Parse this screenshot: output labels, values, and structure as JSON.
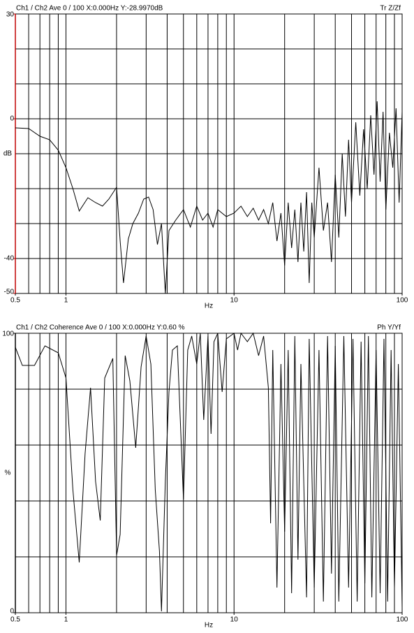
{
  "chart_data": [
    {
      "type": "line",
      "header_left": "Ch1 / Ch2  Ave 0 / 100  X:0.000Hz  Y:-28.9970dB",
      "header_right": "Tr Z/Zf",
      "xlabel": "Hz",
      "ylabel": "dB",
      "xscale": "log",
      "xlim": [
        0.5,
        100
      ],
      "xticks": [
        0.5,
        1,
        10,
        100
      ],
      "xgrid": [
        0.6,
        0.7,
        0.8,
        0.9,
        1,
        2,
        3,
        4,
        5,
        6,
        7,
        8,
        9,
        10,
        20,
        30,
        40,
        50,
        60,
        70,
        80,
        90
      ],
      "ylim": [
        -50,
        30
      ],
      "yticks": [
        30,
        0,
        -40,
        -50
      ],
      "ygrid": [
        -40,
        -30,
        -20,
        -10,
        0,
        10,
        20
      ],
      "axis_color": "#c00000",
      "color": "#000000",
      "x": [
        0.5,
        0.6,
        0.7,
        0.8,
        0.9,
        1.0,
        1.1,
        1.2,
        1.35,
        1.5,
        1.65,
        1.8,
        2.0,
        2.1,
        2.2,
        2.35,
        2.5,
        2.7,
        2.9,
        3.1,
        3.3,
        3.5,
        3.7,
        3.9,
        4.1,
        4.5,
        5,
        5.5,
        6,
        6.5,
        7,
        7.5,
        8,
        9,
        10,
        11,
        12,
        13,
        14,
        15,
        16,
        17,
        18,
        19,
        20,
        21,
        22,
        23,
        24,
        25,
        26,
        27,
        28,
        29,
        30,
        32,
        34,
        36,
        38,
        40,
        42,
        44,
        46,
        48,
        50,
        53,
        56,
        59,
        62,
        65,
        68,
        71,
        74,
        77,
        80,
        84,
        88,
        92,
        96,
        100
      ],
      "values": [
        -2.6,
        -2.8,
        -5,
        -6,
        -9,
        -14,
        -20,
        -26.4,
        -22.6,
        -24,
        -25,
        -23,
        -19.6,
        -35,
        -47,
        -34.4,
        -30,
        -27,
        -23,
        -22.4,
        -26,
        -36,
        -30,
        -50,
        -32,
        -29,
        -26,
        -31,
        -25,
        -29,
        -27,
        -31,
        -26,
        -28,
        -27,
        -25,
        -28,
        -25.6,
        -29,
        -26,
        -30,
        -24,
        -35,
        -27,
        -42,
        -24,
        -37,
        -26,
        -41,
        -24,
        -38,
        -21,
        -47,
        -24,
        -34,
        -14,
        -32,
        -24,
        -41,
        -16,
        -34,
        -10,
        -28,
        -6,
        -24,
        -1,
        -22,
        -3,
        -20,
        1,
        -16,
        5,
        -18,
        2,
        -26,
        -4,
        -14,
        3,
        -24,
        2
      ]
    },
    {
      "type": "line",
      "header_left": "Ch1 / Ch2  Coherence Ave 0 / 100  X:0.000Hz  Y:0.60 %",
      "header_right": "Ph Y/Yf",
      "xlabel": "Hz",
      "ylabel": "%",
      "xscale": "log",
      "xlim": [
        0.5,
        100
      ],
      "xticks": [
        0.5,
        1,
        10,
        100
      ],
      "xgrid": [
        0.6,
        0.7,
        0.8,
        0.9,
        1,
        2,
        3,
        4,
        5,
        6,
        7,
        8,
        9,
        10,
        20,
        30,
        40,
        50,
        60,
        70,
        80,
        90
      ],
      "ylim": [
        0,
        100
      ],
      "yticks": [
        100,
        0
      ],
      "ygrid": [
        20,
        40,
        60,
        80
      ],
      "axis_color": "#000000",
      "color": "#000000",
      "x": [
        0.5,
        0.55,
        0.65,
        0.75,
        0.9,
        1.0,
        1.1,
        1.2,
        1.3,
        1.4,
        1.5,
        1.6,
        1.7,
        1.9,
        2.0,
        2.1,
        2.25,
        2.4,
        2.6,
        2.8,
        3.0,
        3.2,
        3.4,
        3.6,
        3.7,
        3.9,
        4.1,
        4.3,
        4.6,
        5.0,
        5.3,
        5.6,
        6,
        6.3,
        6.6,
        7,
        7.3,
        7.6,
        8,
        8.5,
        9,
        10,
        10.5,
        11,
        12,
        13,
        14,
        15,
        16,
        16.5,
        17,
        18,
        19,
        20,
        21,
        22,
        23,
        24,
        25,
        27,
        28,
        30,
        32,
        34,
        36,
        38,
        40,
        42,
        45,
        48,
        51,
        54,
        57,
        60,
        63,
        66,
        70,
        74,
        78,
        82,
        86,
        90,
        95,
        100
      ],
      "values": [
        95,
        88.5,
        88.5,
        95.5,
        93,
        84,
        44,
        18,
        57,
        80.5,
        47,
        33,
        84,
        91,
        20.5,
        28,
        92,
        83,
        59,
        88,
        99,
        89,
        44,
        22,
        0.5,
        47,
        79,
        94,
        95.5,
        40.5,
        94,
        99,
        89,
        100,
        69,
        99,
        64,
        97,
        100,
        79,
        98,
        100,
        94,
        100,
        97,
        100,
        92,
        99,
        80.5,
        32,
        94,
        9,
        89,
        29,
        94,
        7,
        99,
        19,
        89,
        5.5,
        98,
        9,
        94,
        4,
        99,
        14,
        95.5,
        4,
        99,
        9,
        98,
        4,
        97,
        10.5,
        99,
        5.5,
        94,
        7,
        98,
        4,
        94,
        9,
        89,
        2
      ]
    }
  ]
}
